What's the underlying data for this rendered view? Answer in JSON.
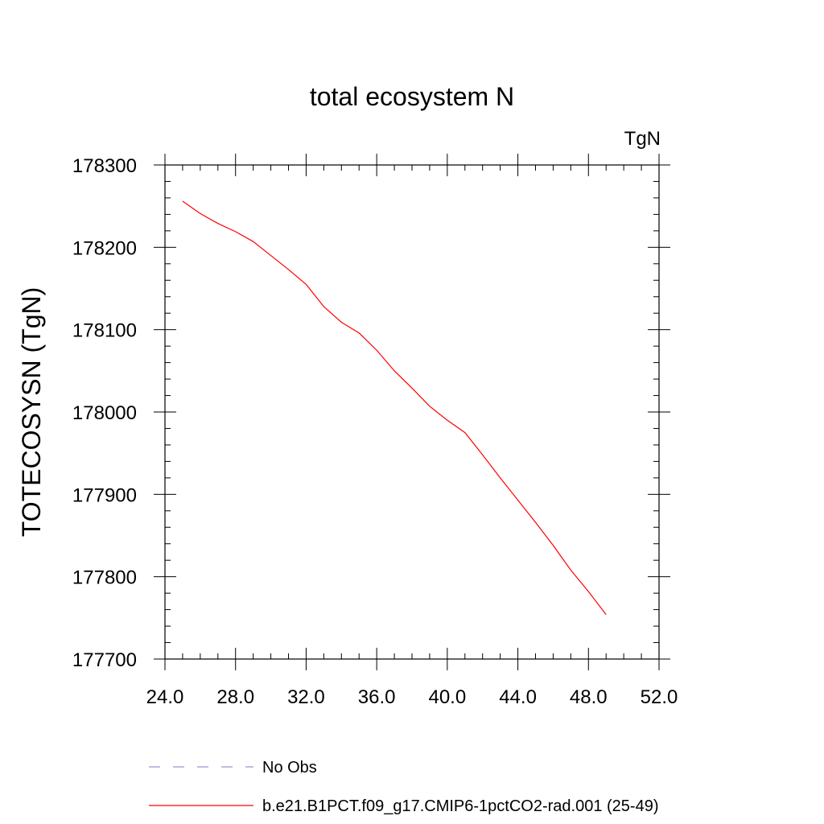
{
  "chart_data": {
    "type": "line",
    "title": "total ecosystem N",
    "units_label": "TgN",
    "ylabel": "TOTECOSYSN  (TgN)",
    "xlabel": "",
    "xlim": [
      24,
      52
    ],
    "ylim": [
      177700,
      178300
    ],
    "x_ticks": [
      "24.0",
      "28.0",
      "32.0",
      "36.0",
      "40.0",
      "44.0",
      "48.0",
      "52.0"
    ],
    "y_ticks": [
      "177700",
      "177800",
      "177900",
      "178000",
      "178100",
      "178200",
      "178300"
    ],
    "legend_position": "bottom",
    "series": [
      {
        "name": "No Obs",
        "color": "#9b93d6",
        "style": "dashed",
        "x": [],
        "values": []
      },
      {
        "name": "b.e21.B1PCT.f09_g17.CMIP6-1pctCO2-rad.001 (25-49)",
        "color": "#ff0000",
        "style": "solid",
        "x": [
          25,
          26,
          27,
          28,
          29,
          30,
          31,
          32,
          33,
          34,
          35,
          36,
          37,
          38,
          39,
          40,
          41,
          42,
          43,
          44,
          45,
          46,
          47,
          48,
          49
        ],
        "values": [
          178256,
          178241,
          178229,
          178219,
          178207,
          178190,
          178173,
          178155,
          178128,
          178109,
          178096,
          178075,
          178050,
          178029,
          178007,
          177990,
          177975,
          177948,
          177920,
          177893,
          177866,
          177838,
          177808,
          177782,
          177754
        ]
      }
    ]
  }
}
